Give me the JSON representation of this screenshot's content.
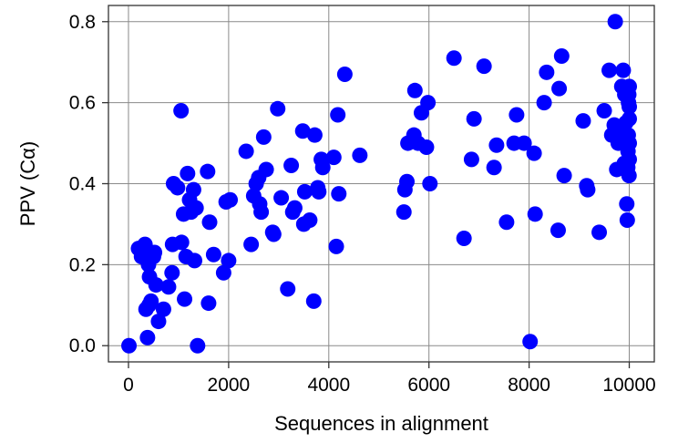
{
  "chart_data": {
    "type": "scatter",
    "xlabel": "Sequences in alignment",
    "ylabel": "PPV (Cα)",
    "xlim": [
      -400,
      10500
    ],
    "ylim": [
      -0.04,
      0.84
    ],
    "x_ticks": [
      0,
      2000,
      4000,
      6000,
      8000,
      10000
    ],
    "y_ticks": [
      0.0,
      0.2,
      0.4,
      0.6,
      0.8
    ],
    "x_tick_labels": [
      "0",
      "2000",
      "4000",
      "6000",
      "8000",
      "10000"
    ],
    "y_tick_labels": [
      "0.0",
      "0.2",
      "0.4",
      "0.6",
      "0.8"
    ],
    "grid": true,
    "marker_color": "#0000ff",
    "series": [
      {
        "points": [
          [
            10,
            0.0
          ],
          [
            200,
            0.24
          ],
          [
            260,
            0.22
          ],
          [
            300,
            0.24
          ],
          [
            330,
            0.25
          ],
          [
            350,
            0.09
          ],
          [
            380,
            0.02
          ],
          [
            400,
            0.2
          ],
          [
            410,
            0.1
          ],
          [
            420,
            0.17
          ],
          [
            450,
            0.11
          ],
          [
            500,
            0.22
          ],
          [
            520,
            0.23
          ],
          [
            550,
            0.15
          ],
          [
            600,
            0.06
          ],
          [
            700,
            0.09
          ],
          [
            800,
            0.145
          ],
          [
            870,
            0.18
          ],
          [
            880,
            0.25
          ],
          [
            900,
            0.4
          ],
          [
            980,
            0.39
          ],
          [
            1050,
            0.58
          ],
          [
            1060,
            0.255
          ],
          [
            1100,
            0.325
          ],
          [
            1120,
            0.115
          ],
          [
            1150,
            0.22
          ],
          [
            1180,
            0.425
          ],
          [
            1220,
            0.36
          ],
          [
            1250,
            0.33
          ],
          [
            1300,
            0.385
          ],
          [
            1320,
            0.21
          ],
          [
            1350,
            0.34
          ],
          [
            1380,
            0.0
          ],
          [
            1580,
            0.43
          ],
          [
            1600,
            0.105
          ],
          [
            1620,
            0.305
          ],
          [
            1700,
            0.225
          ],
          [
            1900,
            0.18
          ],
          [
            1950,
            0.355
          ],
          [
            2000,
            0.21
          ],
          [
            2030,
            0.36
          ],
          [
            2350,
            0.48
          ],
          [
            2450,
            0.25
          ],
          [
            2500,
            0.37
          ],
          [
            2550,
            0.4
          ],
          [
            2600,
            0.415
          ],
          [
            2620,
            0.35
          ],
          [
            2650,
            0.33
          ],
          [
            2700,
            0.515
          ],
          [
            2750,
            0.435
          ],
          [
            2880,
            0.28
          ],
          [
            2900,
            0.275
          ],
          [
            2980,
            0.585
          ],
          [
            3050,
            0.365
          ],
          [
            3180,
            0.14
          ],
          [
            3250,
            0.445
          ],
          [
            3280,
            0.33
          ],
          [
            3320,
            0.34
          ],
          [
            3480,
            0.53
          ],
          [
            3500,
            0.3
          ],
          [
            3520,
            0.38
          ],
          [
            3620,
            0.31
          ],
          [
            3700,
            0.11
          ],
          [
            3720,
            0.52
          ],
          [
            3780,
            0.39
          ],
          [
            3800,
            0.38
          ],
          [
            3850,
            0.46
          ],
          [
            3880,
            0.44
          ],
          [
            4100,
            0.465
          ],
          [
            4150,
            0.245
          ],
          [
            4180,
            0.57
          ],
          [
            4200,
            0.375
          ],
          [
            4320,
            0.67
          ],
          [
            4620,
            0.47
          ],
          [
            5500,
            0.33
          ],
          [
            5520,
            0.385
          ],
          [
            5560,
            0.405
          ],
          [
            5580,
            0.5
          ],
          [
            5700,
            0.52
          ],
          [
            5720,
            0.63
          ],
          [
            5780,
            0.5
          ],
          [
            5850,
            0.575
          ],
          [
            5950,
            0.49
          ],
          [
            5980,
            0.6
          ],
          [
            6020,
            0.4
          ],
          [
            6500,
            0.71
          ],
          [
            6700,
            0.265
          ],
          [
            6850,
            0.46
          ],
          [
            6900,
            0.56
          ],
          [
            7100,
            0.69
          ],
          [
            7300,
            0.44
          ],
          [
            7350,
            0.495
          ],
          [
            7550,
            0.305
          ],
          [
            7700,
            0.5
          ],
          [
            7750,
            0.57
          ],
          [
            7900,
            0.5
          ],
          [
            8020,
            0.01
          ],
          [
            8100,
            0.475
          ],
          [
            8120,
            0.325
          ],
          [
            8300,
            0.6
          ],
          [
            8350,
            0.675
          ],
          [
            8580,
            0.285
          ],
          [
            8600,
            0.635
          ],
          [
            8650,
            0.715
          ],
          [
            8700,
            0.42
          ],
          [
            9080,
            0.555
          ],
          [
            9150,
            0.395
          ],
          [
            9170,
            0.385
          ],
          [
            9400,
            0.28
          ],
          [
            9500,
            0.58
          ],
          [
            9600,
            0.68
          ],
          [
            9650,
            0.52
          ],
          [
            9700,
            0.545
          ],
          [
            9720,
            0.8
          ],
          [
            9750,
            0.435
          ],
          [
            9780,
            0.5
          ],
          [
            9820,
            0.53
          ],
          [
            9850,
            0.64
          ],
          [
            9880,
            0.68
          ],
          [
            9900,
            0.45
          ],
          [
            9910,
            0.62
          ],
          [
            9930,
            0.55
          ],
          [
            9950,
            0.35
          ],
          [
            9960,
            0.31
          ],
          [
            9970,
            0.44
          ],
          [
            9975,
            0.48
          ],
          [
            9980,
            0.52
          ],
          [
            9985,
            0.6
          ],
          [
            9990,
            0.62
          ],
          [
            9995,
            0.42
          ],
          [
            10000,
            0.46
          ],
          [
            10000,
            0.5
          ],
          [
            10000,
            0.56
          ],
          [
            10000,
            0.64
          ],
          [
            10000,
            0.59
          ]
        ]
      }
    ]
  }
}
